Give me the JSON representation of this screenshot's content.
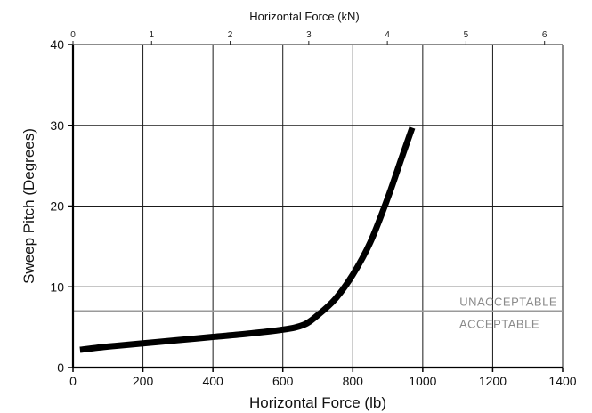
{
  "chart_data": {
    "type": "line",
    "xlabel": "Horizontal Force (lb)",
    "ylabel": "Sweep Pitch (Degrees)",
    "x2label": "Horizontal Force (kN)",
    "xlim": [
      0,
      1400
    ],
    "ylim": [
      0,
      40
    ],
    "x2lim": [
      0,
      6.23
    ],
    "xticks": [
      "0",
      "200",
      "400",
      "600",
      "800",
      "1000",
      "1200",
      "1400"
    ],
    "yticks": [
      "0",
      "10",
      "20",
      "30",
      "40"
    ],
    "x2ticks": [
      "0",
      "1",
      "2",
      "3",
      "4",
      "5",
      "6"
    ],
    "grid": true,
    "series": [
      {
        "x": [
          20,
          100,
          200,
          300,
          400,
          500,
          600,
          660,
          700,
          750,
          800,
          850,
          900,
          940,
          970
        ],
        "y": [
          2.2,
          2.6,
          3.0,
          3.4,
          3.8,
          4.2,
          4.7,
          5.3,
          6.5,
          8.5,
          11.5,
          15.5,
          21.0,
          26.0,
          29.7
        ]
      }
    ],
    "threshold": {
      "y": 7,
      "upper_label": "UNACCEPTABLE",
      "lower_label": "ACCEPTABLE"
    },
    "colors": {
      "curve": "#000000",
      "grid": "#1a1a1a",
      "threshold": "#9a9a9a",
      "threshold_text": "#8a8a8a"
    }
  }
}
